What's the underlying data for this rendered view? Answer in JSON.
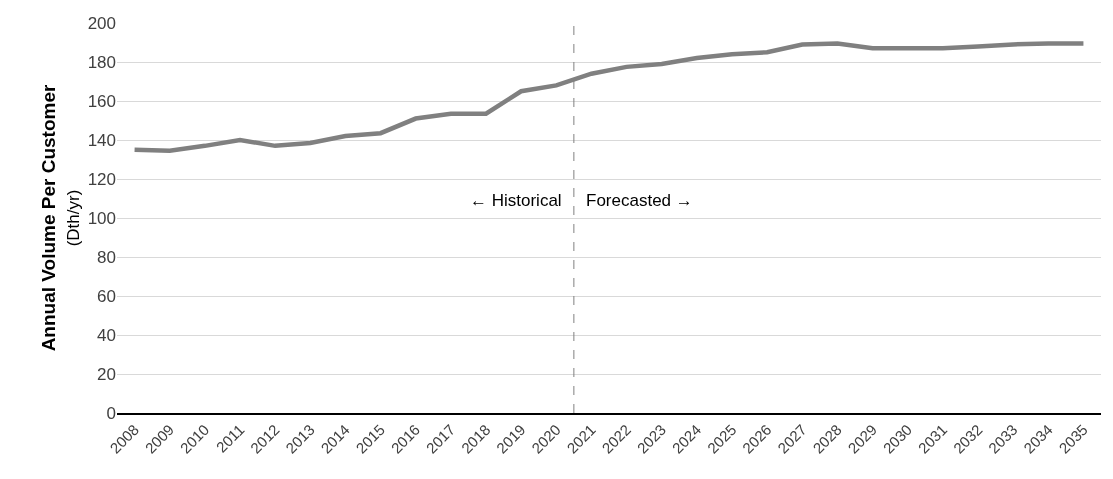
{
  "chart_data": {
    "type": "line",
    "ylabel": "Annual Volume Per Customer\n(Dth/yr)",
    "x": [
      2008,
      2009,
      2010,
      2011,
      2012,
      2013,
      2014,
      2015,
      2016,
      2017,
      2018,
      2019,
      2020,
      2021,
      2022,
      2023,
      2024,
      2025,
      2026,
      2027,
      2028,
      2029,
      2030,
      2031,
      2032,
      2033,
      2034,
      2035
    ],
    "series": [
      {
        "color": "#808080",
        "values": [
          135,
          134.5,
          137,
          140,
          137,
          138.5,
          142,
          143.5,
          151,
          153.5,
          153.5,
          165,
          168,
          174,
          177.5,
          179,
          182,
          184,
          185,
          189,
          189.5,
          187,
          187,
          187,
          188,
          189,
          189.5,
          189.5
        ]
      }
    ],
    "xlim": [
      2007.5,
      2035.5
    ],
    "xticks": [
      2008,
      2009,
      2010,
      2011,
      2012,
      2013,
      2014,
      2015,
      2016,
      2017,
      2018,
      2019,
      2020,
      2021,
      2022,
      2023,
      2024,
      2025,
      2026,
      2027,
      2028,
      2029,
      2030,
      2031,
      2032,
      2033,
      2034,
      2035
    ],
    "ylim": [
      0,
      200
    ],
    "yticks": [
      0,
      20,
      40,
      60,
      80,
      100,
      120,
      140,
      160,
      180,
      200
    ],
    "grid": "y",
    "marker": "none",
    "line_style": "solid",
    "ref_lines": [
      {
        "axis": "x",
        "value": 2020.5,
        "color": "#808080",
        "line_style": "dashed"
      }
    ],
    "annotations": [
      "← Historical",
      "Forecasted →"
    ]
  }
}
